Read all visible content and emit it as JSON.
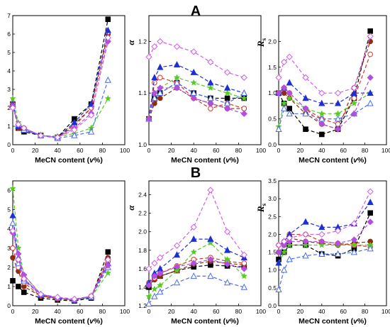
{
  "panel_labels": [
    "A",
    "B"
  ],
  "xlabel_parts": [
    "MeCN content (",
    "v",
    "%)"
  ],
  "series_styles": [
    {
      "marker": "square",
      "color": "#000000",
      "fill": "#000000"
    },
    {
      "marker": "circle",
      "color": "#8b2e0f",
      "fill": "#8b2e0f"
    },
    {
      "marker": "circle-open",
      "color": "#d9342b",
      "fill": "none"
    },
    {
      "marker": "star",
      "color": "#55cc22",
      "fill": "#55cc22"
    },
    {
      "marker": "triangle",
      "color": "#1f2fd6",
      "fill": "#1f2fd6"
    },
    {
      "marker": "triangle-open",
      "color": "#4a6cf0",
      "fill": "none"
    },
    {
      "marker": "diamond",
      "color": "#b04fe0",
      "fill": "#b04fe0"
    },
    {
      "marker": "diamond-open",
      "color": "#d35de8",
      "fill": "none"
    }
  ],
  "chart_data": [
    {
      "type": "scatter",
      "row": "A",
      "ylabel": "k",
      "ylabel_sub": "1",
      "xlim": [
        0,
        100
      ],
      "ylim": [
        0,
        7
      ],
      "xticks": [
        0,
        20,
        40,
        60,
        80,
        100
      ],
      "yticks": [
        0,
        1,
        2,
        3,
        4,
        5,
        6,
        7
      ],
      "x": [
        0,
        5,
        10,
        25,
        40,
        55,
        70,
        85
      ],
      "series": [
        {
          "values": [
            2.2,
            0.9,
            0.7,
            0.5,
            0.4,
            1.4,
            2.2,
            6.8
          ]
        },
        {
          "values": [
            2.2,
            0.9,
            0.8,
            0.5,
            0.4,
            1.1,
            2.0,
            6.0
          ]
        },
        {
          "values": [
            2.2,
            1.0,
            0.9,
            0.5,
            0.4,
            1.0,
            2.0,
            6.1
          ]
        },
        {
          "values": [
            2.5,
            1.2,
            0.9,
            0.5,
            0.45,
            0.6,
            0.9,
            2.5
          ]
        },
        {
          "values": [
            2.2,
            1.0,
            0.8,
            0.5,
            0.4,
            1.2,
            2.2,
            6.2
          ]
        },
        {
          "values": [
            2.1,
            1.1,
            0.8,
            0.5,
            0.35,
            0.5,
            0.7,
            3.5
          ]
        },
        {
          "values": [
            2.1,
            1.1,
            0.9,
            0.5,
            0.4,
            0.9,
            1.7,
            5.6
          ]
        },
        {
          "values": [
            2.0,
            1.1,
            0.9,
            0.5,
            0.4,
            0.8,
            1.6,
            5.8
          ]
        }
      ]
    },
    {
      "type": "scatter",
      "row": "A",
      "ylabel": "α",
      "ylabel_sub": "",
      "xlim": [
        0,
        100
      ],
      "ylim": [
        1.0,
        1.25
      ],
      "xticks": [
        0,
        20,
        40,
        60,
        80,
        100
      ],
      "yticks": [
        1.0,
        1.1,
        1.2
      ],
      "x": [
        0,
        5,
        10,
        25,
        40,
        55,
        70,
        85
      ],
      "series": [
        {
          "values": [
            1.05,
            1.09,
            1.1,
            1.12,
            1.1,
            1.09,
            1.09,
            1.09
          ]
        },
        {
          "values": [
            1.05,
            1.08,
            1.09,
            1.11,
            1.09,
            1.08,
            1.07,
            1.07
          ]
        },
        {
          "values": [
            1.05,
            1.12,
            1.13,
            1.12,
            1.09,
            1.07,
            1.08,
            1.07
          ]
        },
        {
          "values": [
            1.05,
            1.1,
            1.11,
            1.13,
            1.12,
            1.11,
            1.1,
            1.09
          ]
        },
        {
          "values": [
            1.05,
            1.13,
            1.15,
            1.155,
            1.14,
            1.12,
            1.11,
            1.1
          ]
        },
        {
          "values": [
            1.05,
            1.09,
            1.1,
            1.12,
            1.1,
            1.09,
            1.08,
            1.1
          ]
        },
        {
          "values": [
            1.05,
            1.1,
            1.11,
            1.11,
            1.09,
            1.08,
            1.07,
            1.06
          ]
        },
        {
          "values": [
            1.17,
            1.19,
            1.2,
            1.19,
            1.18,
            1.16,
            1.14,
            1.13
          ]
        }
      ]
    },
    {
      "type": "scatter",
      "row": "A",
      "ylabel": "R",
      "ylabel_sub": "s",
      "xlim": [
        0,
        100
      ],
      "ylim": [
        0.0,
        2.5
      ],
      "xticks": [
        0,
        20,
        40,
        60,
        80,
        100
      ],
      "yticks": [
        0.0,
        0.5,
        1.0,
        1.5,
        2.0
      ],
      "x": [
        0,
        5,
        10,
        25,
        40,
        55,
        70,
        85
      ],
      "series": [
        {
          "values": [
            1.0,
            0.8,
            0.7,
            0.3,
            0.2,
            0.3,
            0.9,
            2.2
          ]
        },
        {
          "values": [
            1.0,
            1.0,
            0.9,
            0.6,
            0.4,
            0.3,
            1.1,
            2.0
          ]
        },
        {
          "values": [
            1.0,
            1.1,
            1.0,
            0.7,
            0.5,
            0.4,
            0.9,
            1.75
          ]
        },
        {
          "values": [
            0.35,
            0.8,
            0.9,
            0.7,
            0.6,
            0.6,
            0.8,
            1.0
          ]
        },
        {
          "values": [
            1.0,
            1.1,
            1.2,
            0.9,
            0.8,
            0.8,
            1.0,
            1.0
          ]
        },
        {
          "values": [
            0.3,
            0.7,
            0.6,
            0.6,
            0.5,
            0.5,
            0.6,
            0.8
          ]
        },
        {
          "values": [
            1.0,
            1.1,
            1.0,
            0.7,
            0.4,
            0.3,
            0.6,
            1.3
          ]
        },
        {
          "values": [
            1.3,
            1.6,
            1.7,
            1.3,
            1.0,
            1.0,
            1.1,
            2.1
          ]
        }
      ]
    },
    {
      "type": "scatter",
      "row": "B",
      "ylabel": "k",
      "ylabel_sub": "1",
      "xlim": [
        0,
        100
      ],
      "ylim": [
        0,
        6.5
      ],
      "xticks": [
        0,
        20,
        40,
        60,
        80,
        100
      ],
      "yticks": [
        0,
        1,
        2,
        3,
        4,
        5,
        6
      ],
      "x": [
        0,
        5,
        10,
        25,
        40,
        55,
        70,
        85
      ],
      "series": [
        {
          "values": [
            1.3,
            1.0,
            0.7,
            0.4,
            0.3,
            0.25,
            0.4,
            2.8
          ]
        },
        {
          "values": [
            2.5,
            1.8,
            1.0,
            0.5,
            0.35,
            0.3,
            0.45,
            2.5
          ]
        },
        {
          "values": [
            3.0,
            2.0,
            1.2,
            0.5,
            0.4,
            0.3,
            0.5,
            2.3
          ]
        },
        {
          "values": [
            6.1,
            3.0,
            1.6,
            0.6,
            0.4,
            0.3,
            0.45,
            1.7
          ]
        },
        {
          "values": [
            4.7,
            2.5,
            1.4,
            0.55,
            0.4,
            0.3,
            0.5,
            2.2
          ]
        },
        {
          "values": [
            4.3,
            2.2,
            1.3,
            0.6,
            0.4,
            0.3,
            0.45,
            2.0
          ]
        },
        {
          "values": [
            3.8,
            2.7,
            1.6,
            0.6,
            0.4,
            0.3,
            0.5,
            2.1
          ]
        },
        {
          "values": [
            3.9,
            2.4,
            1.4,
            0.6,
            0.45,
            0.35,
            0.5,
            2.4
          ]
        }
      ]
    },
    {
      "type": "scatter",
      "row": "B",
      "ylabel": "α",
      "ylabel_sub": "",
      "xlim": [
        0,
        100
      ],
      "ylim": [
        1.2,
        2.55
      ],
      "xticks": [
        0,
        20,
        40,
        60,
        80,
        100
      ],
      "yticks": [
        1.2,
        1.4,
        1.6,
        1.8,
        2.0,
        2.2,
        2.4
      ],
      "x": [
        0,
        5,
        10,
        25,
        40,
        55,
        70,
        85
      ],
      "series": [
        {
          "values": [
            1.4,
            1.5,
            1.52,
            1.58,
            1.62,
            1.64,
            1.63,
            1.62
          ]
        },
        {
          "values": [
            1.42,
            1.48,
            1.52,
            1.58,
            1.65,
            1.68,
            1.66,
            1.64
          ]
        },
        {
          "values": [
            1.45,
            1.5,
            1.55,
            1.63,
            1.7,
            1.72,
            1.68,
            1.66
          ]
        },
        {
          "values": [
            1.3,
            1.38,
            1.42,
            1.58,
            1.78,
            1.88,
            1.7,
            1.52
          ]
        },
        {
          "values": [
            1.45,
            1.55,
            1.6,
            1.75,
            1.92,
            1.92,
            1.8,
            1.72
          ]
        },
        {
          "values": [
            1.22,
            1.3,
            1.35,
            1.45,
            1.52,
            1.52,
            1.45,
            1.4
          ]
        },
        {
          "values": [
            1.42,
            1.52,
            1.55,
            1.62,
            1.66,
            1.7,
            1.65,
            1.6
          ]
        },
        {
          "values": [
            1.6,
            1.66,
            1.72,
            1.85,
            2.05,
            2.45,
            2.0,
            1.75
          ]
        }
      ]
    },
    {
      "type": "scatter",
      "row": "B",
      "ylabel": "R",
      "ylabel_sub": "s",
      "xlim": [
        0,
        100
      ],
      "ylim": [
        0.0,
        3.5
      ],
      "xticks": [
        0,
        20,
        40,
        60,
        80,
        100
      ],
      "yticks": [
        0.0,
        0.5,
        1.0,
        1.5,
        2.0,
        2.5,
        3.0,
        3.5
      ],
      "x": [
        0,
        5,
        10,
        25,
        40,
        55,
        70,
        85
      ],
      "series": [
        {
          "values": [
            1.3,
            1.5,
            1.7,
            1.7,
            1.45,
            1.4,
            1.6,
            2.6
          ]
        },
        {
          "values": [
            1.5,
            1.7,
            1.9,
            1.8,
            1.75,
            1.7,
            1.75,
            1.8
          ]
        },
        {
          "values": [
            1.7,
            1.8,
            2.0,
            2.0,
            1.8,
            1.75,
            1.7,
            1.65
          ]
        },
        {
          "values": [
            1.2,
            1.5,
            1.7,
            1.7,
            1.7,
            1.7,
            1.7,
            1.7
          ]
        },
        {
          "values": [
            1.2,
            1.8,
            2.0,
            2.35,
            2.2,
            2.2,
            2.3,
            2.9
          ]
        },
        {
          "values": [
            0.45,
            1.0,
            1.3,
            1.4,
            1.45,
            1.45,
            1.5,
            1.6
          ]
        },
        {
          "values": [
            1.5,
            1.7,
            1.8,
            1.8,
            1.8,
            1.75,
            1.85,
            2.35
          ]
        },
        {
          "values": [
            1.7,
            1.8,
            1.9,
            2.0,
            2.0,
            2.1,
            2.3,
            3.2
          ]
        }
      ]
    }
  ]
}
